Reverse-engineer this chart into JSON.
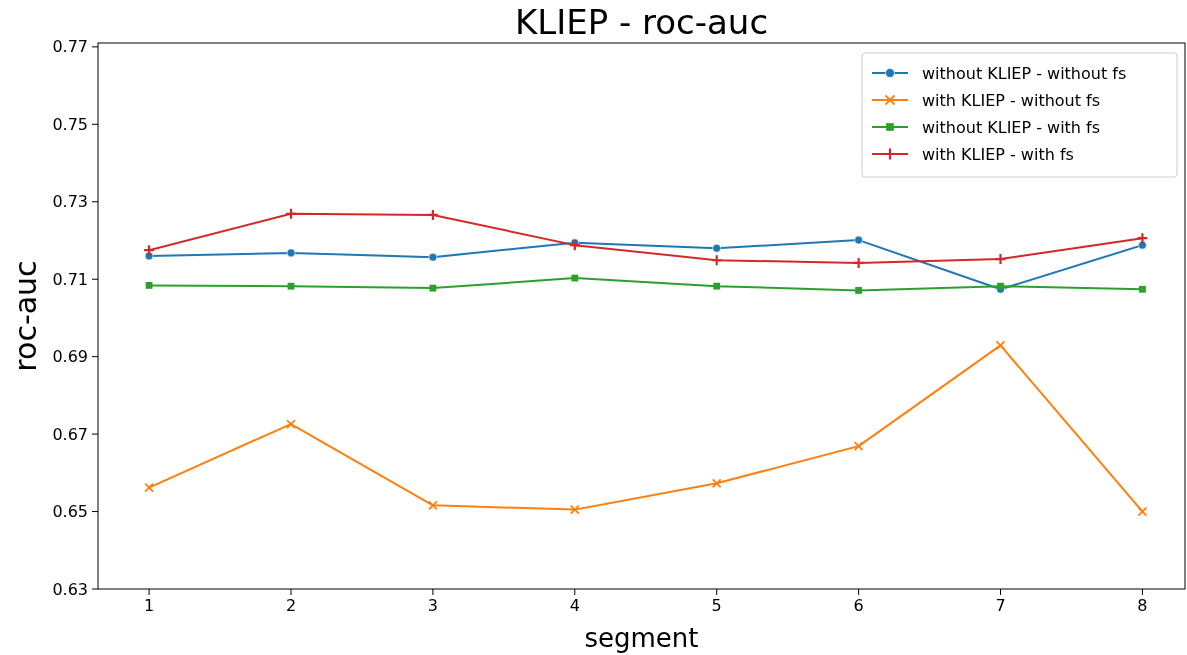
{
  "chart_data": {
    "type": "line",
    "title": "KLIEP - roc-auc",
    "xlabel": "segment",
    "ylabel": "roc-auc",
    "x": [
      1,
      2,
      3,
      4,
      5,
      6,
      7,
      8
    ],
    "xlim": [
      0.64,
      8.3
    ],
    "xticks": [
      1,
      2,
      3,
      4,
      5,
      6,
      7,
      8
    ],
    "ylim": [
      0.63,
      0.771
    ],
    "yticks": [
      0.63,
      0.65,
      0.67,
      0.69,
      0.71,
      0.73,
      0.75,
      0.77
    ],
    "grid": false,
    "legend": "top right",
    "line_style": "solid",
    "series": [
      {
        "name": "without KLIEP - without fs",
        "color": "#1f77b4",
        "marker": "circle",
        "values": [
          0.716,
          0.7168,
          0.7157,
          0.7194,
          0.718,
          0.7201,
          0.7074,
          0.7188
        ]
      },
      {
        "name": "with KLIEP - without fs",
        "color": "#ff7f0e",
        "marker": "cross",
        "values": [
          0.6562,
          0.6726,
          0.6516,
          0.6505,
          0.6573,
          0.6669,
          0.6929,
          0.65
        ]
      },
      {
        "name": "without KLIEP - with fs",
        "color": "#2ca02c",
        "marker": "square",
        "values": [
          0.7084,
          0.7082,
          0.7077,
          0.7103,
          0.7082,
          0.7071,
          0.7082,
          0.7074
        ]
      },
      {
        "name": "with KLIEP - with fs",
        "color": "#d62728",
        "marker": "plus",
        "values": [
          0.7175,
          0.7269,
          0.7266,
          0.7188,
          0.7149,
          0.7142,
          0.7152,
          0.7206
        ]
      }
    ]
  }
}
